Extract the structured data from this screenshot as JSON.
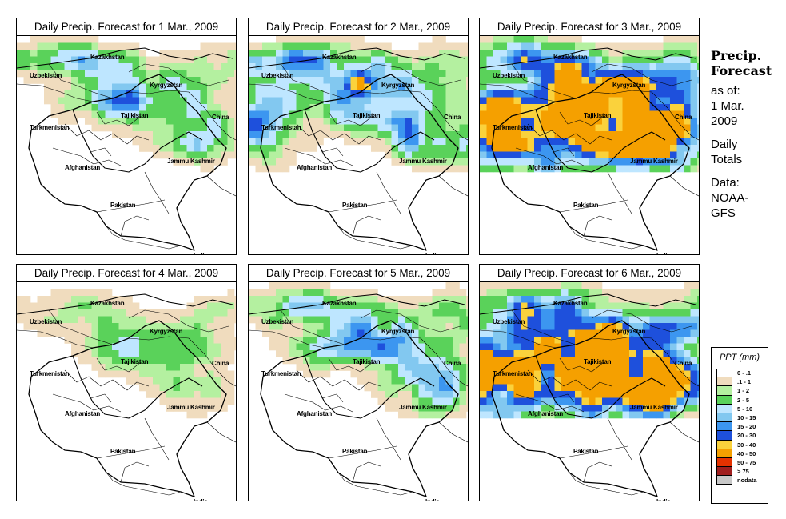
{
  "panels": [
    {
      "title": "Daily Precip. Forecast for  1 Mar., 2009",
      "intensity": 1
    },
    {
      "title": "Daily Precip. Forecast for  2 Mar., 2009",
      "intensity": 2
    },
    {
      "title": "Daily Precip. Forecast for  3 Mar., 2009",
      "intensity": 3
    },
    {
      "title": "Daily Precip. Forecast for  4 Mar., 2009",
      "intensity": 0
    },
    {
      "title": "Daily Precip. Forecast for  5 Mar., 2009",
      "intensity": 1
    },
    {
      "title": "Daily Precip. Forecast for  6 Mar., 2009",
      "intensity": 3
    }
  ],
  "map_labels": {
    "kazakhstan": "Kazakhstan",
    "uzbekistan": "Uzbekistan",
    "kyrgyzstan": "Kyrgyzstan",
    "tajikistan": "Tajikistan",
    "china": "China",
    "turkmenistan": "Turkmenistan",
    "afghanistan": "Afghanistan",
    "jammu_kashmir": "Jammu Kashmir",
    "pakistan": "Pakistan",
    "india": "India"
  },
  "side": {
    "heading_line1": "Precip.",
    "heading_line2": "Forecast",
    "asof_1": "as of:",
    "asof_2": "1 Mar.",
    "asof_3": "2009",
    "totals_1": "Daily",
    "totals_2": "Totals",
    "data_1": "Data:",
    "data_2": "NOAA-",
    "data_3": "GFS"
  },
  "legend": {
    "title": "PPT (mm)",
    "items": [
      {
        "label": "0 - .1",
        "color": "#ffffff"
      },
      {
        "label": ".1 - 1",
        "color": "#f0dcbe"
      },
      {
        "label": "1 - 2",
        "color": "#b4f0a0"
      },
      {
        "label": "2 - 5",
        "color": "#5ad25a"
      },
      {
        "label": "5 - 10",
        "color": "#bee6ff"
      },
      {
        "label": "10 - 15",
        "color": "#82c8f0"
      },
      {
        "label": "15 - 20",
        "color": "#3c96f0"
      },
      {
        "label": "20 - 30",
        "color": "#1e50dc"
      },
      {
        "label": "30 - 40",
        "color": "#fad23c"
      },
      {
        "label": "40 - 50",
        "color": "#f5a000"
      },
      {
        "label": "50 - 75",
        "color": "#e63200"
      },
      {
        "label": "> 75",
        "color": "#a01e1e"
      },
      {
        "label": "nodata",
        "color": "#c8c8c8"
      }
    ]
  }
}
